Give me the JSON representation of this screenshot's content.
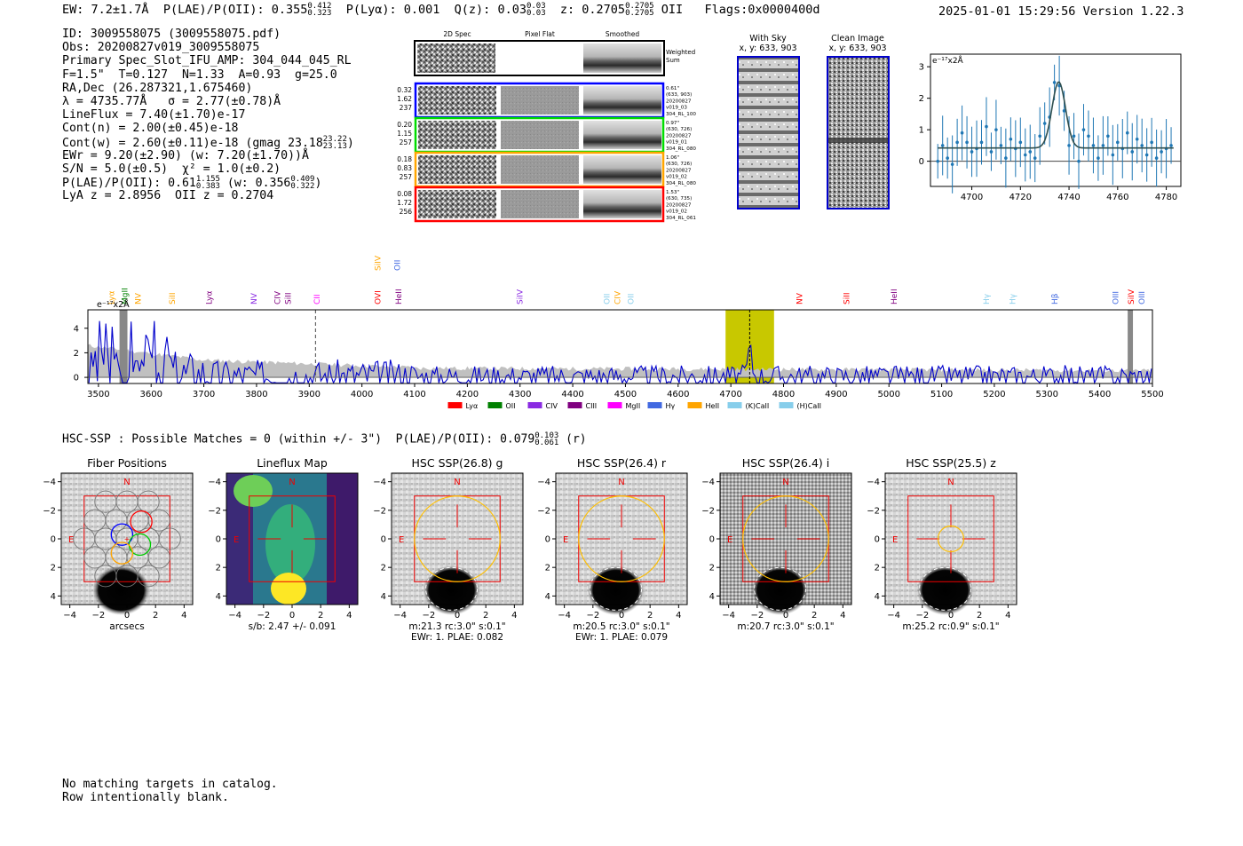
{
  "header": {
    "ew": "EW: 7.2±1.7Å",
    "plae_label": "P(LAE)/P(OII): 0.355",
    "plae_hi": "0.412",
    "plae_lo": "0.323",
    "plya": "P(Lyα): 0.001",
    "qz_label": "Q(z): 0.03",
    "qz_hi": "0.03",
    "qz_lo": "0.03",
    "z_label": "z: 0.2705",
    "z_hi": "0.2705",
    "z_lo": "0.2705",
    "z_line": "OII",
    "flags": "Flags:0x0000400d",
    "datetime": "2025-01-01 15:29:56",
    "version": "Version 1.22.3"
  },
  "info": {
    "id": "ID: 3009558075 (3009558075.pdf)",
    "obs": "Obs: 20200827v019_3009558075",
    "primary": "Primary Spec_Slot_IFU_AMP: 304_044_045_RL",
    "fiber": "F=1.5\"  T=0.127  N=1.33  A=0.93  g=25.0",
    "radec": "RA,Dec (26.287321,1.675460)",
    "lambda": "λ = 4735.77Å   σ = 2.77(±0.78)Å",
    "lineflux": "LineFlux = 7.40(±1.70)e-17",
    "contn": "Cont(n) = 2.00(±0.45)e-18",
    "contw": "Cont(w) = 2.60(±0.11)e-18 (gmag 23.18",
    "contw_hi": "23.22",
    "contw_lo": "23.13",
    "contw_end": ")",
    "ewr": "EWr = 9.20(±2.90) (w: 7.20(±1.70))Å",
    "sn": "S/N = 5.0(±0.5)  χ² = 1.0(±0.2)",
    "plae": "P(LAE)/P(OII): 0.61",
    "plae_hi": "1.155",
    "plae_lo": "0.383",
    "plae_w": "(w: 0.356",
    "plae_w_hi": "0.409",
    "plae_w_lo": "0.322",
    "plae_end": ")",
    "lyaz": "LyA z = 2.8956  OII z = 0.2704"
  },
  "cutouts": {
    "col_titles": [
      "2D Spec",
      "Pixel Flat",
      "Smoothed"
    ],
    "weighted_sum": "Weighted Sum",
    "rows": [
      {
        "left": [
          "0.32",
          "1.62",
          "237"
        ],
        "right": [
          "0.61\"",
          "(633, 903)",
          "20200827",
          "v019_03",
          "304_RL_100"
        ],
        "color": "#0000ff"
      },
      {
        "left": [
          "0.20",
          "1.15",
          "257"
        ],
        "right": [
          "0.97\"",
          "(630, 726)",
          "20200827",
          "v019_01",
          "304_RL_080"
        ],
        "color": "#00dd00"
      },
      {
        "left": [
          "0.18",
          "0.83",
          "257"
        ],
        "right": [
          "1.06\"",
          "(630, 726)",
          "20200827",
          "v019_02",
          "304_RL_080"
        ],
        "color": "#ffa500"
      },
      {
        "left": [
          "0.08",
          "1.72",
          "256"
        ],
        "right": [
          "1.53\"",
          "(630, 735)",
          "20200827",
          "v019_02",
          "304_RL_061"
        ],
        "color": "#ff0000"
      }
    ]
  },
  "images": {
    "with_sky": "With Sky",
    "with_sky_xy": "x, y: 633, 903",
    "clean": "Clean Image",
    "clean_xy": "x, y: 633, 903"
  },
  "zoom_plot": {
    "unit": "e⁻¹⁷x2Å",
    "x_ticks": [
      "4700",
      "4720",
      "4740",
      "4760",
      "4780"
    ],
    "y_ticks": [
      "0",
      "1",
      "2",
      "3"
    ]
  },
  "chart_data": [
    {
      "type": "scatter",
      "title": "",
      "xlabel": "",
      "ylabel": "e-17x2Å",
      "xlim": [
        4683,
        4786
      ],
      "ylim": [
        -0.8,
        3.4
      ],
      "x": [
        4686,
        4688,
        4690,
        4692,
        4694,
        4696,
        4698,
        4700,
        4702,
        4704,
        4706,
        4708,
        4710,
        4712,
        4714,
        4716,
        4718,
        4720,
        4722,
        4724,
        4726,
        4728,
        4730,
        4732,
        4734,
        4736,
        4738,
        4740,
        4742,
        4744,
        4746,
        4748,
        4750,
        4752,
        4754,
        4756,
        4758,
        4760,
        4762,
        4764,
        4766,
        4768,
        4770,
        4772,
        4774,
        4776,
        4778,
        4780,
        4782
      ],
      "y": [
        0.0,
        0.5,
        0.1,
        -0.1,
        0.6,
        0.9,
        0.6,
        0.3,
        0.4,
        0.6,
        1.1,
        0.3,
        1.0,
        0.5,
        0.1,
        0.7,
        0.4,
        0.6,
        0.2,
        0.3,
        0.1,
        0.8,
        1.2,
        1.4,
        2.5,
        2.4,
        1.6,
        0.5,
        0.8,
        0.0,
        1.0,
        0.8,
        0.5,
        0.1,
        0.5,
        0.8,
        0.2,
        0.6,
        0.4,
        0.9,
        0.3,
        0.7,
        0.5,
        0.2,
        0.6,
        0.1,
        0.3,
        0.4,
        0.5
      ],
      "fit": {
        "continuum": 0.42,
        "amplitude": 2.1,
        "center": 4735.77,
        "sigma": 2.77
      }
    },
    {
      "type": "line",
      "title": "",
      "xlabel": "",
      "ylabel": "e-17x2Å",
      "xlim": [
        3480,
        5500
      ],
      "ylim": [
        -0.5,
        5.5
      ],
      "x_ticks": [
        "3500",
        "3600",
        "3700",
        "3800",
        "3900",
        "4000",
        "4100",
        "4200",
        "4300",
        "4400",
        "4500",
        "4600",
        "4700",
        "4800",
        "4900",
        "5000",
        "5100",
        "5200",
        "5300",
        "5400",
        "5500"
      ],
      "y_ticks": [
        "0",
        "2",
        "4"
      ],
      "highlight_range": [
        4690,
        4782
      ],
      "line_marker": 4735.77,
      "dashed_marker": 3912,
      "series": [
        {
          "name": "flux",
          "color": "#0000cc"
        },
        {
          "name": "error",
          "color": "#b8b8b8"
        }
      ]
    }
  ],
  "line_labels": [
    {
      "label": "Lyα",
      "x": 3530,
      "color": "#ffa500"
    },
    {
      "label": "MgII",
      "x": 3555,
      "color": "#008000"
    },
    {
      "label": "NV",
      "x": 3580,
      "color": "#ffa500"
    },
    {
      "label": "SiII",
      "x": 3645,
      "color": "#ffa500"
    },
    {
      "label": "Lyα",
      "x": 3715,
      "color": "#800080"
    },
    {
      "label": "NV",
      "x": 3800,
      "color": "#8a2be2"
    },
    {
      "label": "CIV",
      "x": 3845,
      "color": "#800080"
    },
    {
      "label": "SiII",
      "x": 3865,
      "color": "#800080"
    },
    {
      "label": "CII",
      "x": 3920,
      "color": "#ff00ff"
    },
    {
      "label": "OVI",
      "x": 4035,
      "color": "#ff0000"
    },
    {
      "label": "HeII",
      "x": 4075,
      "color": "#800080"
    },
    {
      "label": "SiIV",
      "x": 4035,
      "color": "#ffa500",
      "row": "upper"
    },
    {
      "label": "OII",
      "x": 4072,
      "color": "#4169e1",
      "row": "upper"
    },
    {
      "label": "SiIV",
      "x": 4305,
      "color": "#8a2be2"
    },
    {
      "label": "OII",
      "x": 4470,
      "color": "#87ceeb"
    },
    {
      "label": "CIV",
      "x": 4490,
      "color": "#ffa500"
    },
    {
      "label": "OII",
      "x": 4515,
      "color": "#87ceeb"
    },
    {
      "label": "NV",
      "x": 4835,
      "color": "#ff0000"
    },
    {
      "label": "SiII",
      "x": 4925,
      "color": "#ff0000"
    },
    {
      "label": "HeII",
      "x": 5015,
      "color": "#800080"
    },
    {
      "label": "Hγ",
      "x": 5190,
      "color": "#87ceeb"
    },
    {
      "label": "Hγ",
      "x": 5240,
      "color": "#87ceeb"
    },
    {
      "label": "Hβ",
      "x": 5320,
      "color": "#4169e1"
    },
    {
      "label": "OIII",
      "x": 5435,
      "color": "#4169e1"
    },
    {
      "label": "SiIV",
      "x": 5465,
      "color": "#ff0000"
    },
    {
      "label": "OIII",
      "x": 5485,
      "color": "#4169e1"
    }
  ],
  "legend": [
    {
      "label": "Lyα",
      "color": "#ff0000"
    },
    {
      "label": "OII",
      "color": "#008000"
    },
    {
      "label": "CIV",
      "color": "#8a2be2"
    },
    {
      "label": "CIII",
      "color": "#800080"
    },
    {
      "label": "MgII",
      "color": "#ff00ff"
    },
    {
      "label": "Hγ",
      "color": "#4169e1"
    },
    {
      "label": "HeII",
      "color": "#ffa500"
    },
    {
      "label": "(K)CaII",
      "color": "#87ceeb"
    },
    {
      "label": "(H)CaII",
      "color": "#87ceeb"
    }
  ],
  "spectrum_unit": "e⁻¹⁷x2Å",
  "hsc": {
    "line": "HSC-SSP : Possible Matches = 0 (within +/- 3\")  P(LAE)/P(OII): 0.079",
    "hi": "0.103",
    "lo": "0.061",
    "band": "(r)"
  },
  "panels": [
    {
      "title": "Fiber Positions",
      "caption1": "arcsecs",
      "caption2": ""
    },
    {
      "title": "Lineflux Map",
      "caption1": "s/b: 2.47 +/- 0.091",
      "caption2": ""
    },
    {
      "title": "HSC SSP(26.8) g",
      "caption1": "m:21.3 rc:3.0\"  s:0.1\"",
      "caption2": "EWr: 1. PLAE: 0.082"
    },
    {
      "title": "HSC SSP(26.4) r",
      "caption1": "m:20.5 rc:3.0\"  s:0.1\"",
      "caption2": "EWr: 1. PLAE: 0.079"
    },
    {
      "title": "HSC SSP(26.4) i",
      "caption1": "m:20.7 rc:3.0\"  s:0.1\"",
      "caption2": ""
    },
    {
      "title": "HSC SSP(25.5) z",
      "caption1": "m:25.2 rc:0.9\"  s:0.1\"",
      "caption2": ""
    }
  ],
  "panel_axis": {
    "ticks": [
      "−4",
      "−2",
      "0",
      "2",
      "4"
    ],
    "north": "N",
    "east": "E"
  },
  "note": {
    "line1": "No matching targets in catalog.",
    "line2": "Row intentionally blank."
  }
}
